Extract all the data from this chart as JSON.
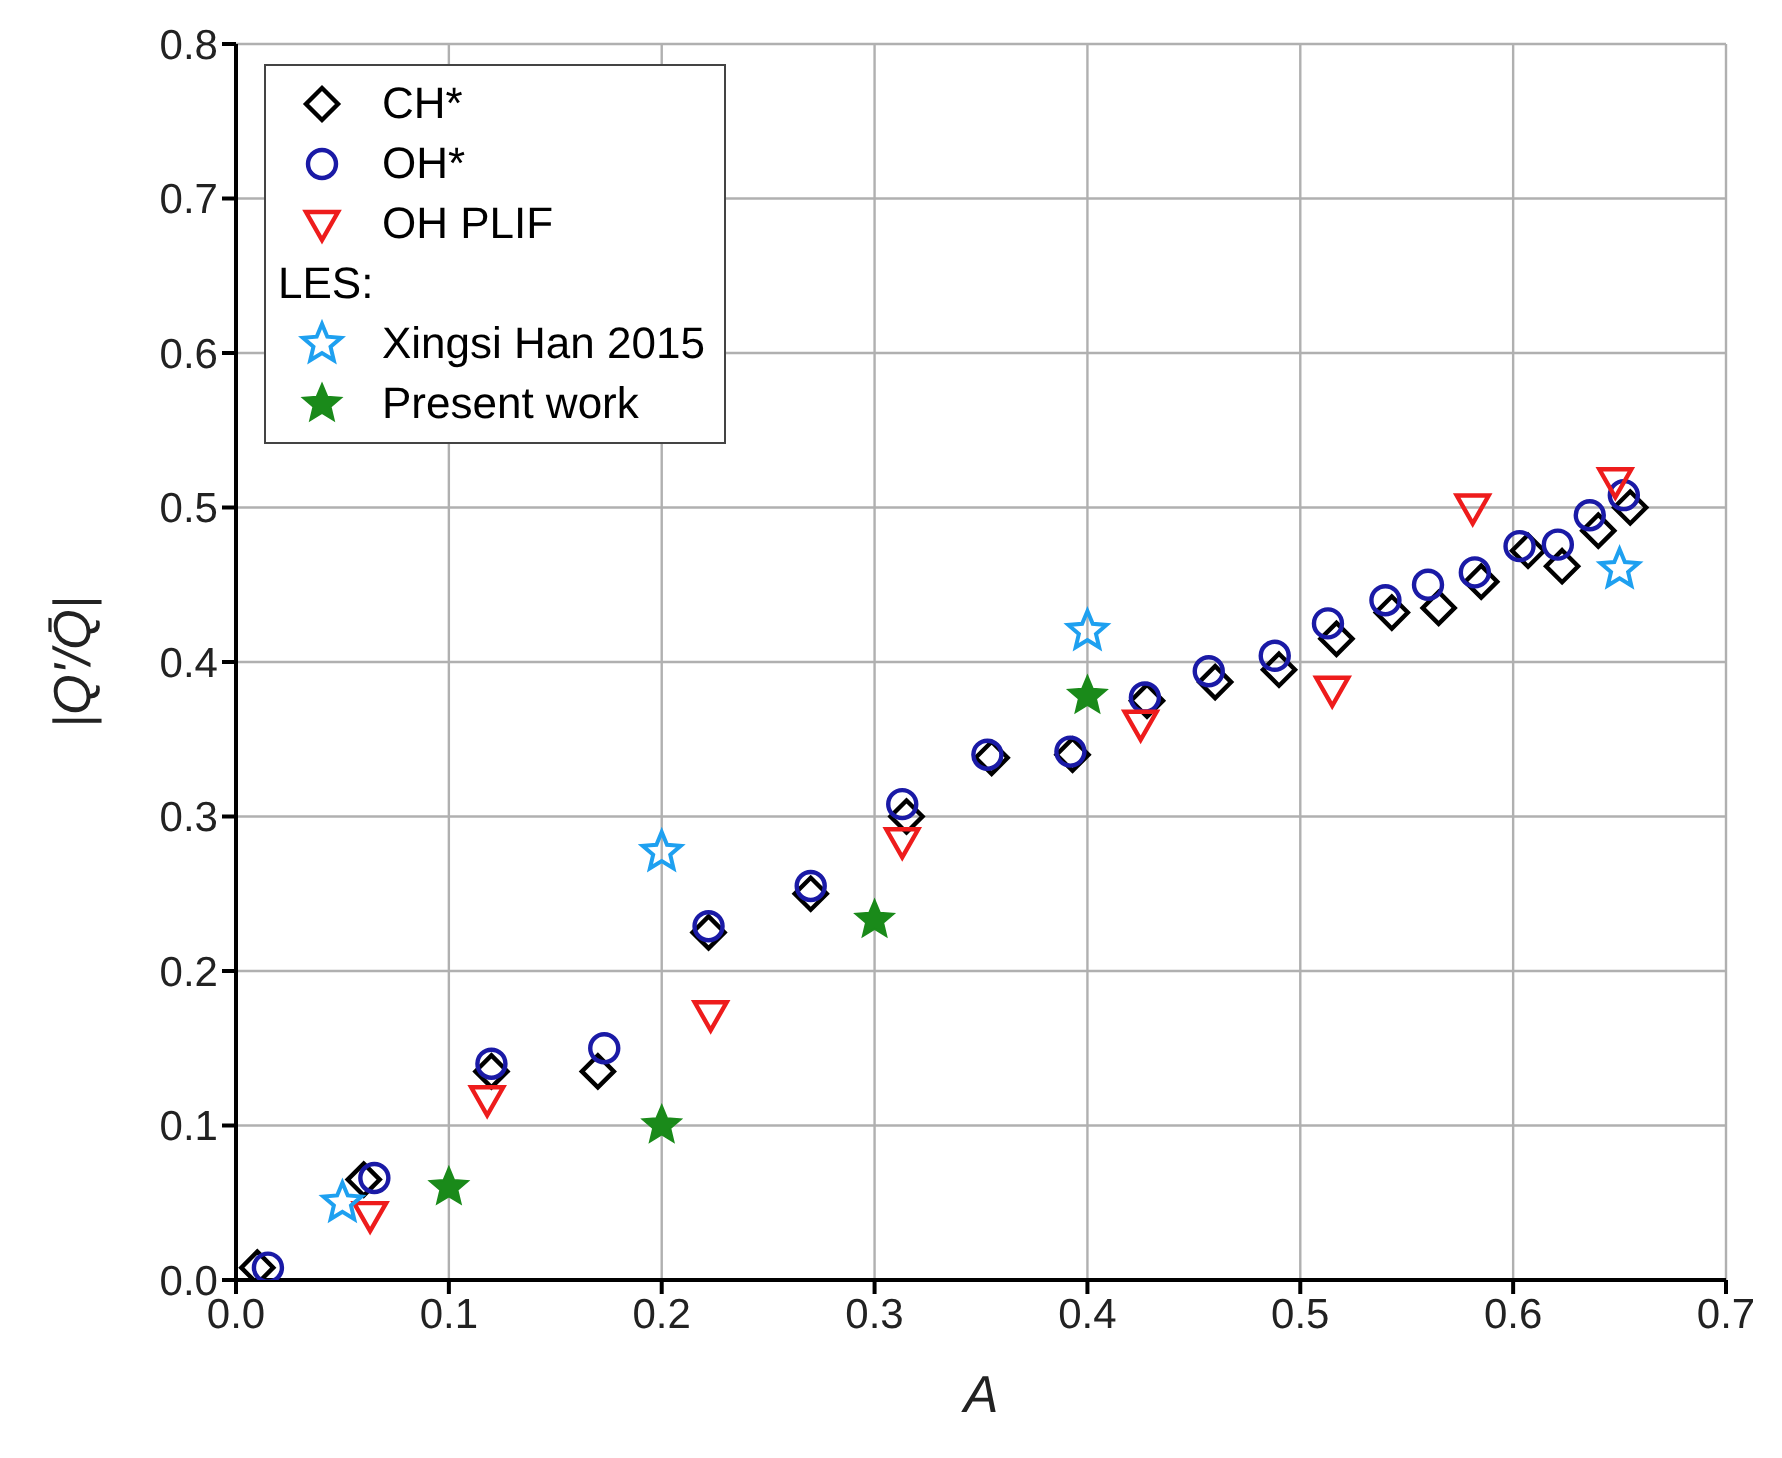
{
  "chart_data": {
    "type": "scatter",
    "xlabel": "A",
    "ylabel": "|Q'/Q̄|",
    "xlim": [
      0,
      0.7
    ],
    "ylim": [
      0,
      0.8
    ],
    "xticks": [
      {
        "value": 0,
        "label": "0.0"
      },
      {
        "value": 0.1,
        "label": "0.1"
      },
      {
        "value": 0.2,
        "label": "0.2"
      },
      {
        "value": 0.3,
        "label": "0.3"
      },
      {
        "value": 0.4,
        "label": "0.4"
      },
      {
        "value": 0.5,
        "label": "0.5"
      },
      {
        "value": 0.6,
        "label": "0.6"
      },
      {
        "value": 0.7,
        "label": "0.7"
      }
    ],
    "yticks": [
      {
        "value": 0,
        "label": "0.0"
      },
      {
        "value": 0.1,
        "label": "0.1"
      },
      {
        "value": 0.2,
        "label": "0.2"
      },
      {
        "value": 0.3,
        "label": "0.3"
      },
      {
        "value": 0.4,
        "label": "0.4"
      },
      {
        "value": 0.5,
        "label": "0.5"
      },
      {
        "value": 0.6,
        "label": "0.6"
      },
      {
        "value": 0.7,
        "label": "0.7"
      },
      {
        "value": 0.8,
        "label": "0.8"
      }
    ],
    "grid": true,
    "legend": "top left",
    "annotations": [
      "LES:"
    ],
    "series": [
      {
        "name": "CH*",
        "color": "#000000",
        "marker": "diamond",
        "x": [
          0.01,
          0.06,
          0.12,
          0.17,
          0.222,
          0.27,
          0.315,
          0.355,
          0.393,
          0.428,
          0.46,
          0.49,
          0.517,
          0.543,
          0.565,
          0.585,
          0.607,
          0.623,
          0.64,
          0.655
        ],
        "values": [
          0.008,
          0.065,
          0.135,
          0.135,
          0.225,
          0.25,
          0.3,
          0.338,
          0.34,
          0.375,
          0.387,
          0.395,
          0.415,
          0.432,
          0.435,
          0.452,
          0.472,
          0.462,
          0.485,
          0.5
        ]
      },
      {
        "name": "OH*",
        "color": "#1a1aa6",
        "marker": "circle",
        "x": [
          0.015,
          0.065,
          0.12,
          0.173,
          0.222,
          0.27,
          0.313,
          0.353,
          0.392,
          0.427,
          0.457,
          0.488,
          0.513,
          0.54,
          0.56,
          0.582,
          0.603,
          0.621,
          0.636,
          0.652
        ],
        "values": [
          0.008,
          0.066,
          0.14,
          0.15,
          0.229,
          0.255,
          0.308,
          0.34,
          0.342,
          0.377,
          0.394,
          0.404,
          0.425,
          0.44,
          0.45,
          0.458,
          0.475,
          0.476,
          0.495,
          0.508
        ]
      },
      {
        "name": "OH PLIF",
        "color": "#ee1c1c",
        "marker": "triangle",
        "x": [
          0.063,
          0.118,
          0.223,
          0.313,
          0.425,
          0.515,
          0.581,
          0.648
        ],
        "values": [
          0.042,
          0.117,
          0.172,
          0.284,
          0.36,
          0.382,
          0.5,
          0.517
        ]
      },
      {
        "name": "Xingsi Han 2015",
        "color": "#1ea0f0",
        "marker": "star",
        "x": [
          0.05,
          0.2,
          0.4,
          0.65
        ],
        "values": [
          0.05,
          0.277,
          0.42,
          0.46
        ]
      },
      {
        "name": "Present work",
        "color": "#1a8a1a",
        "marker": "star",
        "x": [
          0.1,
          0.2,
          0.3,
          0.4
        ],
        "values": [
          0.06,
          0.1,
          0.233,
          0.378
        ]
      }
    ]
  }
}
